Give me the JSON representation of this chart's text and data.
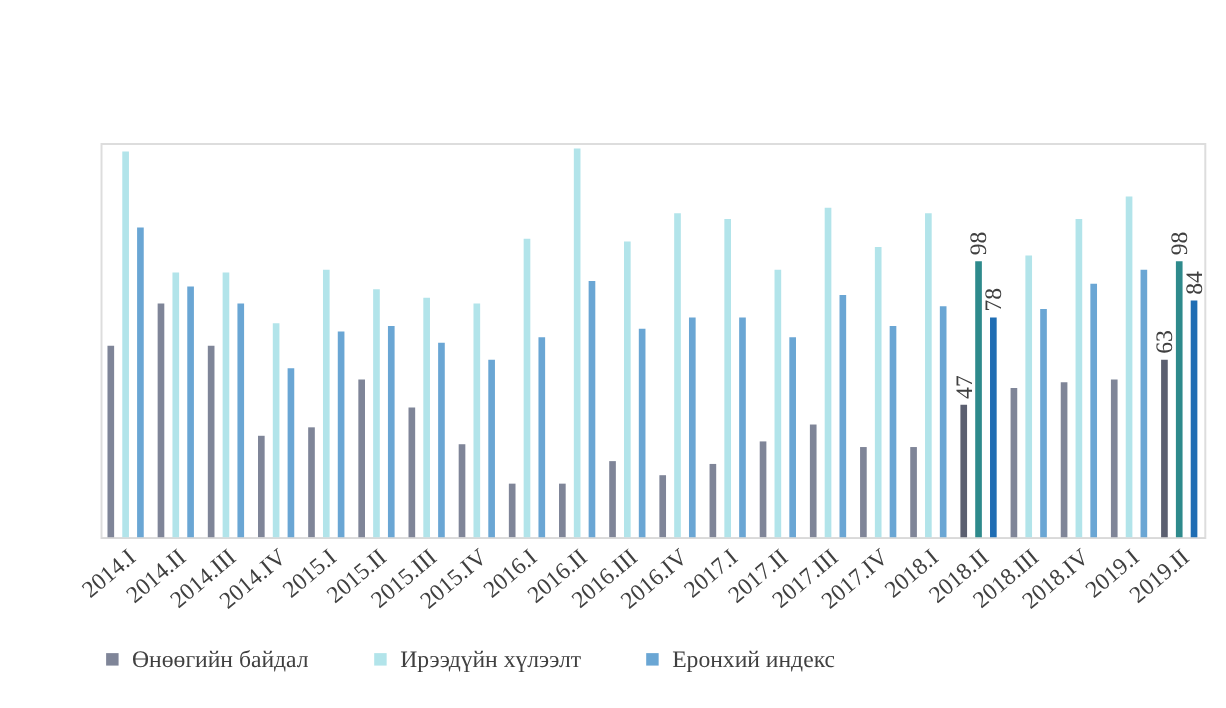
{
  "chart_data": {
    "type": "bar",
    "categories": [
      "2014.I",
      "2014.II",
      "2014.III",
      "2014.IV",
      "2015.I",
      "2015.II",
      "2015.III",
      "2015.IV",
      "2016.I",
      "2016.II",
      "2016.III",
      "2016.IV",
      "2017.I",
      "2017.II",
      "2017.III",
      "2017.IV",
      "2018.I",
      "2018.II",
      "2018.III",
      "2018.IV",
      "2019.I",
      "2019.II"
    ],
    "series": [
      {
        "name": "Өнөөгийн байдал",
        "color": "#7f8598",
        "colors": [
          "#7f8598",
          "#7f8598",
          "#7f8598",
          "#7f8598",
          "#7f8598",
          "#7f8598",
          "#7f8598",
          "#7f8598",
          "#7f8598",
          "#7f8598",
          "#7f8598",
          "#7f8598",
          "#7f8598",
          "#7f8598",
          "#7f8598",
          "#7f8598",
          "#7f8598",
          "#5b5f70",
          "#7f8598",
          "#7f8598",
          "#7f8598",
          "#5b5f70"
        ],
        "values": [
          68,
          83,
          68,
          36,
          39,
          56,
          46,
          33,
          19,
          19,
          27,
          22,
          26,
          34,
          40,
          32,
          32,
          47,
          53,
          55,
          56,
          63
        ],
        "value_labels": [
          null,
          null,
          null,
          null,
          null,
          null,
          null,
          null,
          null,
          null,
          null,
          null,
          null,
          null,
          null,
          null,
          null,
          "47",
          null,
          null,
          null,
          "63"
        ]
      },
      {
        "name": "Ирээдүйн хүлээлт",
        "color": "#b2e4ea",
        "colors": [
          "#b2e4ea",
          "#b2e4ea",
          "#b2e4ea",
          "#b2e4ea",
          "#b2e4ea",
          "#b2e4ea",
          "#b2e4ea",
          "#b2e4ea",
          "#b2e4ea",
          "#b2e4ea",
          "#b2e4ea",
          "#b2e4ea",
          "#b2e4ea",
          "#b2e4ea",
          "#b2e4ea",
          "#b2e4ea",
          "#b2e4ea",
          "#2e8a8c",
          "#b2e4ea",
          "#b2e4ea",
          "#b2e4ea",
          "#2e8a8c"
        ],
        "values": [
          137,
          94,
          94,
          76,
          95,
          88,
          85,
          83,
          106,
          138,
          105,
          115,
          113,
          95,
          117,
          103,
          115,
          98,
          100,
          113,
          121,
          98
        ],
        "value_labels": [
          null,
          null,
          null,
          null,
          null,
          null,
          null,
          null,
          null,
          null,
          null,
          null,
          null,
          null,
          null,
          null,
          null,
          "98",
          null,
          null,
          null,
          "98"
        ]
      },
      {
        "name": "Еронхий индекс",
        "color": "#6aa6d4",
        "colors": [
          "#6aa6d4",
          "#6aa6d4",
          "#6aa6d4",
          "#6aa6d4",
          "#6aa6d4",
          "#6aa6d4",
          "#6aa6d4",
          "#6aa6d4",
          "#6aa6d4",
          "#6aa6d4",
          "#6aa6d4",
          "#6aa6d4",
          "#6aa6d4",
          "#6aa6d4",
          "#6aa6d4",
          "#6aa6d4",
          "#6aa6d4",
          "#1f6db3",
          "#6aa6d4",
          "#6aa6d4",
          "#6aa6d4",
          "#1f6db3"
        ],
        "values": [
          110,
          89,
          83,
          60,
          73,
          75,
          69,
          63,
          71,
          91,
          74,
          78,
          78,
          71,
          86,
          75,
          82,
          78,
          81,
          90,
          95,
          84
        ],
        "value_labels": [
          null,
          null,
          null,
          null,
          null,
          null,
          null,
          null,
          null,
          null,
          null,
          null,
          null,
          null,
          null,
          null,
          null,
          "78",
          null,
          null,
          null,
          "84"
        ]
      }
    ],
    "ylim": [
      0,
      140
    ],
    "legend": "bottom",
    "tick_labels": "x"
  }
}
